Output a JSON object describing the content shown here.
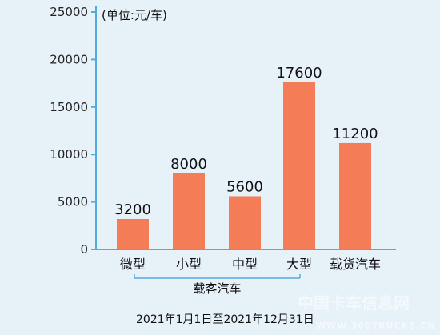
{
  "chart_data": {
    "type": "bar",
    "title": "",
    "unit": "(单位:元/车)",
    "categories": [
      "微型",
      "小型",
      "中型",
      "大型",
      "载货汽车"
    ],
    "values": [
      3200,
      8000,
      5600,
      17600,
      11200
    ],
    "data_labels": [
      "3200",
      "8000",
      "5600",
      "17600",
      "11200"
    ],
    "ylim": [
      0,
      25000
    ],
    "yticks": [
      "0",
      "5000",
      "10000",
      "15000",
      "20000",
      "25000"
    ],
    "group_label": "载客汽车",
    "bar_color": "#f47d57",
    "axis_color": "#55aadd",
    "grid": false,
    "legend": "none"
  },
  "footer": "2021年1月1日至2021年12月31日",
  "watermark": {
    "text": "中国卡车信息网",
    "url": "WWW.360TRUCKS.CN"
  }
}
